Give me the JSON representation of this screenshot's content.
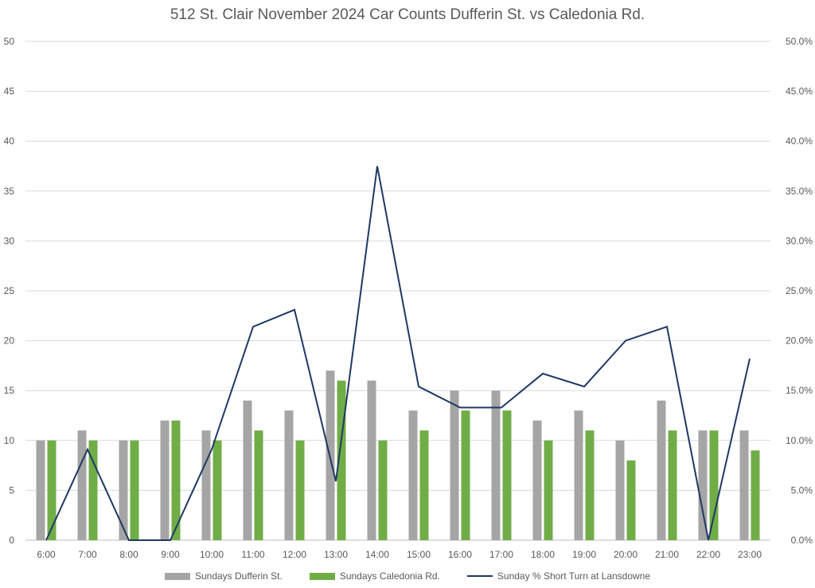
{
  "chart_data": {
    "type": "bar",
    "title": "512 St. Clair November 2024 Car Counts Dufferin St. vs Caledonia Rd.",
    "categories": [
      "6:00",
      "7:00",
      "8:00",
      "9:00",
      "10:00",
      "11:00",
      "12:00",
      "13:00",
      "14:00",
      "15:00",
      "16:00",
      "17:00",
      "18:00",
      "19:00",
      "20:00",
      "21:00",
      "22:00",
      "23:00"
    ],
    "series": [
      {
        "name": "Sundays Dufferin St.",
        "type": "bar",
        "axis": "left",
        "color": "#a5a5a5",
        "values": [
          10,
          11,
          10,
          12,
          11,
          14,
          13,
          17,
          16,
          13,
          15,
          15,
          12,
          13,
          10,
          14,
          11,
          11
        ]
      },
      {
        "name": "Sundays Caledonia Rd.",
        "type": "bar",
        "axis": "left",
        "color": "#70ad47",
        "values": [
          10,
          10,
          10,
          12,
          10,
          11,
          10,
          16,
          10,
          11,
          13,
          13,
          10,
          11,
          8,
          11,
          11,
          9
        ]
      },
      {
        "name": "Sunday % Short Turn at Lansdowne",
        "type": "line",
        "axis": "right",
        "color": "#1f3864",
        "values": [
          0.0,
          9.1,
          0.0,
          0.0,
          9.1,
          21.4,
          23.1,
          5.9,
          37.5,
          15.4,
          13.3,
          13.3,
          16.7,
          15.4,
          20.0,
          21.4,
          0.0,
          18.2
        ]
      }
    ],
    "y_left": {
      "min": 0,
      "max": 50,
      "step": 5,
      "ticks": [
        "0",
        "5",
        "10",
        "15",
        "20",
        "25",
        "30",
        "35",
        "40",
        "45",
        "50"
      ]
    },
    "y_right": {
      "min": 0,
      "max": 50,
      "step": 5,
      "ticks": [
        "0.0%",
        "5.0%",
        "10.0%",
        "15.0%",
        "20.0%",
        "25.0%",
        "30.0%",
        "35.0%",
        "40.0%",
        "45.0%",
        "50.0%"
      ]
    },
    "grid": true,
    "legend_position": "bottom"
  }
}
